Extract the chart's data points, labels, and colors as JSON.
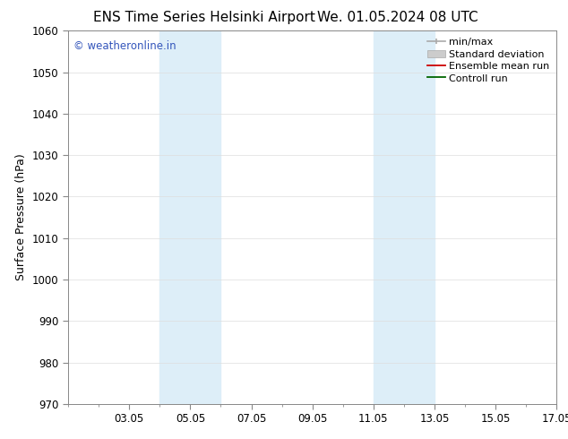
{
  "title": "ENS Time Series Helsinki Airport",
  "title2": "We. 01.05.2024 08 UTC",
  "ylabel": "Surface Pressure (hPa)",
  "ylim": [
    970,
    1060
  ],
  "yticks": [
    970,
    980,
    990,
    1000,
    1010,
    1020,
    1030,
    1040,
    1050,
    1060
  ],
  "xlim": [
    1.0,
    17.0
  ],
  "xtick_labels": [
    "03.05",
    "05.05",
    "07.05",
    "09.05",
    "11.05",
    "13.05",
    "15.05",
    "17.05"
  ],
  "xtick_positions": [
    3,
    5,
    7,
    9,
    11,
    13,
    15,
    17
  ],
  "shade_bands": [
    {
      "x_start": 4.0,
      "x_end": 6.0
    },
    {
      "x_start": 11.0,
      "x_end": 13.0
    }
  ],
  "shade_color": "#ddeef8",
  "copyright_text": "© weatheronline.in",
  "copyright_color": "#3355bb",
  "legend_entries": [
    {
      "label": "min/max"
    },
    {
      "label": "Standard deviation"
    },
    {
      "label": "Ensemble mean run"
    },
    {
      "label": "Controll run"
    }
  ],
  "bg_color": "#ffffff",
  "plot_bg_color": "#ffffff",
  "grid_color": "#dddddd",
  "spine_color": "#888888",
  "title_fontsize": 11,
  "axis_label_fontsize": 9,
  "tick_fontsize": 8.5,
  "copyright_fontsize": 8.5,
  "legend_fontsize": 8
}
